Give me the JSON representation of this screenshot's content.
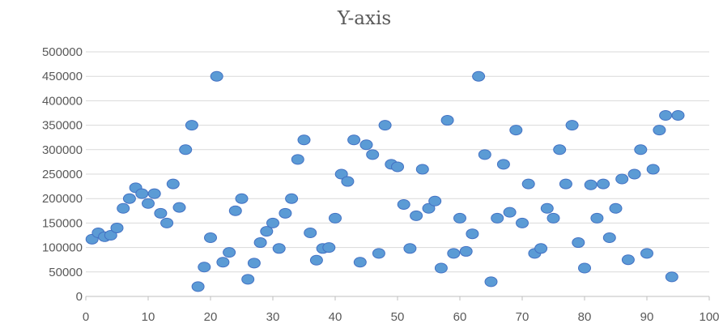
{
  "chart_data": {
    "type": "scatter",
    "title": "Y-axis",
    "xlabel": "",
    "ylabel": "",
    "xlim": [
      0,
      100
    ],
    "ylim": [
      0,
      500000
    ],
    "x_ticks": [
      "0",
      "10",
      "20",
      "30",
      "40",
      "50",
      "60",
      "70",
      "80",
      "90",
      "100"
    ],
    "y_ticks": [
      "0",
      "50000",
      "100000",
      "150000",
      "200000",
      "250000",
      "300000",
      "350000",
      "400000",
      "450000",
      "500000"
    ],
    "grid": "horizontal",
    "legend": "none",
    "marker_color": "#5b9bd5",
    "series": [
      {
        "x": [
          1,
          2,
          3,
          4,
          5,
          6,
          7,
          8,
          9,
          10,
          11,
          12,
          13,
          14,
          15,
          16,
          17,
          18,
          19,
          20,
          21,
          22,
          23,
          24,
          25,
          26,
          27,
          28,
          29,
          30,
          31,
          32,
          33,
          34,
          35,
          36,
          37,
          38,
          39,
          40,
          41,
          42,
          43,
          44,
          45,
          46,
          47,
          48,
          49,
          50,
          51,
          52,
          53,
          54,
          55,
          56,
          57,
          58,
          59,
          60,
          61,
          62,
          63,
          64,
          65,
          66,
          67,
          68,
          69,
          70,
          71,
          72,
          73,
          74,
          75,
          76,
          77,
          78,
          79,
          80,
          81,
          82,
          83,
          84,
          85,
          86,
          87,
          88,
          89,
          90,
          91,
          92,
          93,
          94,
          95
        ],
        "y": [
          117000,
          130000,
          122000,
          125000,
          140000,
          180000,
          200000,
          222000,
          210000,
          190000,
          210000,
          170000,
          150000,
          230000,
          182000,
          300000,
          350000,
          20000,
          60000,
          120000,
          450000,
          70000,
          90000,
          175000,
          200000,
          35000,
          68000,
          110000,
          133000,
          150000,
          98000,
          170000,
          200000,
          280000,
          320000,
          130000,
          74000,
          98000,
          100000,
          160000,
          250000,
          235000,
          320000,
          70000,
          310000,
          290000,
          88000,
          350000,
          270000,
          265000,
          188000,
          98000,
          165000,
          260000,
          180000,
          195000,
          58000,
          360000,
          88000,
          160000,
          92000,
          128000,
          450000,
          290000,
          30000,
          160000,
          270000,
          172000,
          340000,
          150000,
          230000,
          88000,
          98000,
          180000,
          160000,
          300000,
          230000,
          350000,
          110000,
          58000,
          228000,
          160000,
          230000,
          120000,
          180000,
          240000,
          75000,
          250000,
          300000,
          88000,
          260000,
          340000,
          370000,
          40000,
          370000
        ]
      }
    ]
  }
}
